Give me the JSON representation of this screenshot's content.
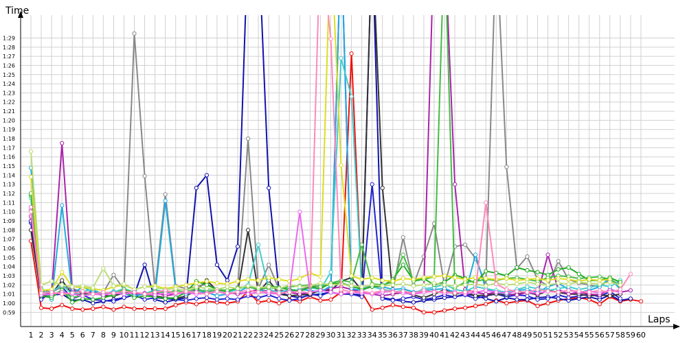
{
  "chart_data": {
    "type": "line",
    "title": "",
    "xlabel": "Laps",
    "ylabel": "Time",
    "grid": true,
    "legend": "none",
    "x": [
      1,
      2,
      3,
      4,
      5,
      6,
      7,
      8,
      9,
      10,
      11,
      12,
      13,
      14,
      15,
      16,
      17,
      18,
      19,
      20,
      21,
      22,
      23,
      24,
      25,
      26,
      27,
      28,
      29,
      30,
      31,
      32,
      33,
      34,
      35,
      36,
      37,
      38,
      39,
      40,
      41,
      42,
      43,
      44,
      45,
      46,
      47,
      48,
      49,
      50,
      51,
      52,
      53,
      54,
      55,
      56,
      57,
      58,
      59,
      60
    ],
    "x_tick_labels": [
      "1",
      "2",
      "3",
      "4",
      "5",
      "6",
      "7",
      "8",
      "9",
      "10",
      "11",
      "12",
      "13",
      "14",
      "15",
      "16",
      "17",
      "18",
      "19",
      "20",
      "21",
      "22",
      "23",
      "24",
      "25",
      "26",
      "27",
      "28",
      "29",
      "30",
      "31",
      "32",
      "33",
      "34",
      "35",
      "36",
      "37",
      "38",
      "39",
      "40",
      "41",
      "42",
      "43",
      "44",
      "45",
      "46",
      "47",
      "48",
      "49",
      "50",
      "51",
      "52",
      "53",
      "54",
      "55",
      "56",
      "57",
      "58",
      "59",
      "60"
    ],
    "y_unit": "seconds",
    "ylim": [
      58,
      91
    ],
    "y_ticks": [
      59,
      60,
      61,
      62,
      63,
      64,
      65,
      66,
      67,
      68,
      69,
      70,
      71,
      72,
      73,
      74,
      75,
      76,
      77,
      78,
      79,
      80,
      81,
      82,
      83,
      84,
      85,
      86,
      87,
      88,
      89
    ],
    "y_tick_labels": [
      "0:59",
      "1:00",
      "1:01",
      "1:02",
      "1:03",
      "1:04",
      "1:05",
      "1:06",
      "1:07",
      "1:08",
      "1:09",
      "1:10",
      "1:11",
      "1:12",
      "1:13",
      "1:14",
      "1:15",
      "1:16",
      "1:17",
      "1:18",
      "1:19",
      "1:20",
      "1:21",
      "1:22",
      "1:23",
      "1:24",
      "1:25",
      "1:26",
      "1:27",
      "1:28",
      "1:29"
    ],
    "series": [
      {
        "color": "#ee1111",
        "values": [
          66.8,
          59.5,
          59.4,
          59.8,
          59.4,
          59.3,
          59.4,
          59.6,
          59.3,
          59.6,
          59.4,
          59.4,
          59.4,
          59.4,
          59.8,
          60.1,
          59.9,
          60.2,
          60.1,
          60.0,
          60.2,
          61.3,
          60.1,
          60.3,
          60.0,
          60.4,
          60.2,
          60.7,
          60.3,
          60.4,
          61.2,
          87.3,
          61.2,
          59.3,
          59.5,
          59.8,
          59.6,
          59.5,
          59.0,
          59.0,
          59.2,
          59.4,
          59.5,
          59.7,
          59.9,
          60.3,
          60.0,
          60.2,
          60.3,
          59.7,
          60.0,
          60.3,
          60.5,
          60.6,
          60.4,
          59.9,
          60.7,
          60.2,
          60.4,
          60.2
        ]
      },
      {
        "color": "#1111aa",
        "values": [
          68.8,
          60.7,
          60.9,
          61.0,
          60.3,
          60.4,
          60.0,
          60.2,
          60.4,
          60.6,
          60.9,
          64.2,
          60.4,
          60.1,
          60.4,
          60.6,
          72.6,
          74.0,
          64.2,
          62.5,
          66.2,
          100.0,
          100.0,
          72.6,
          61.2,
          60.8,
          60.6,
          60.9,
          61.0,
          61.2,
          61.0,
          61.0,
          60.9,
          100.0,
          60.6,
          60.4,
          60.2,
          60.1,
          60.3,
          60.4,
          60.6,
          60.7,
          61.0,
          60.8,
          60.5,
          60.2,
          60.6,
          60.4,
          60.4,
          60.6,
          60.7,
          60.5,
          60.3,
          60.5,
          60.7,
          60.4,
          60.9,
          60.3,
          60.5,
          null
        ]
      },
      {
        "color": "#2222cc",
        "values": [
          69.0,
          60.4,
          61.2,
          61.8,
          60.5,
          60.9,
          60.4,
          60.3,
          60.2,
          60.6,
          60.9,
          60.4,
          60.6,
          60.5,
          60.4,
          60.3,
          60.5,
          60.6,
          60.4,
          60.5,
          60.4,
          60.8,
          60.6,
          60.9,
          60.5,
          60.3,
          60.5,
          61.0,
          60.8,
          61.3,
          100.0,
          61.0,
          60.7,
          73.0,
          60.5,
          60.3,
          60.5,
          60.7,
          60.4,
          60.6,
          60.9,
          60.7,
          60.9,
          60.5,
          60.8,
          61.0,
          60.7,
          60.9,
          60.8,
          60.4,
          60.5,
          60.9,
          60.6,
          60.8,
          61.0,
          60.7,
          61.3,
          60.5,
          null,
          null
        ]
      },
      {
        "color": "#333333",
        "values": [
          68.0,
          60.8,
          61.0,
          62.5,
          61.0,
          60.9,
          61.2,
          60.8,
          60.8,
          61.1,
          61.2,
          61.0,
          60.8,
          60.6,
          60.5,
          60.8,
          61.4,
          62.5,
          61.4,
          61.0,
          61.2,
          68.0,
          61.2,
          62.5,
          61.0,
          60.8,
          60.9,
          61.0,
          61.4,
          61.4,
          62.4,
          62.8,
          61.4,
          100.0,
          72.6,
          61.0,
          61.2,
          60.9,
          60.6,
          61.0,
          61.5,
          61.0,
          61.2,
          60.8,
          60.9,
          61.0,
          60.9,
          61.0,
          61.2,
          60.9,
          61.4,
          61.2,
          61.0,
          61.0,
          60.8,
          60.9,
          60.8,
          61.0,
          null,
          null
        ]
      },
      {
        "color": "#888888",
        "values": [
          70.2,
          61.5,
          61.2,
          61.8,
          61.6,
          61.2,
          61.0,
          61.2,
          63.1,
          61.5,
          89.5,
          73.9,
          61.5,
          71.9,
          61.9,
          61.6,
          61.8,
          62.1,
          61.5,
          61.2,
          61.5,
          78.0,
          61.6,
          64.2,
          61.5,
          61.2,
          61.5,
          61.8,
          61.9,
          62.0,
          62.2,
          61.8,
          61.6,
          61.9,
          61.5,
          61.3,
          67.2,
          62.0,
          65.1,
          68.7,
          61.9,
          66.2,
          66.4,
          64.9,
          62.0,
          100.0,
          74.9,
          63.8,
          65.1,
          62.6,
          61.9,
          64.6,
          62.6,
          62.2,
          62.0,
          61.8,
          62.6,
          62.0,
          null,
          null
        ]
      },
      {
        "color": "#aa22aa",
        "values": [
          69.5,
          61.2,
          61.0,
          77.5,
          61.5,
          61.0,
          61.3,
          61.0,
          61.2,
          61.4,
          61.0,
          61.1,
          61.2,
          60.8,
          61.0,
          61.2,
          61.5,
          61.0,
          61.3,
          61.2,
          61.0,
          61.2,
          61.5,
          61.3,
          61.4,
          61.2,
          61.0,
          61.2,
          61.4,
          61.6,
          61.8,
          61.5,
          61.2,
          61.0,
          60.8,
          61.0,
          61.2,
          61.0,
          61.4,
          100.0,
          100.0,
          73.0,
          61.5,
          61.2,
          61.0,
          61.2,
          61.0,
          60.9,
          61.2,
          61.0,
          65.3,
          61.5,
          61.0,
          61.2,
          61.0,
          60.9,
          61.5,
          61.2,
          61.4,
          null
        ]
      },
      {
        "color": "#22aadd",
        "values": [
          74.8,
          61.6,
          60.4,
          70.7,
          61.0,
          61.8,
          61.2,
          61.0,
          61.3,
          61.0,
          60.8,
          61.0,
          60.9,
          71.2,
          61.5,
          61.0,
          61.3,
          61.2,
          60.8,
          61.0,
          61.2,
          61.8,
          61.5,
          61.2,
          61.0,
          61.3,
          61.5,
          61.4,
          61.2,
          61.9,
          100.0,
          61.6,
          61.4,
          61.9,
          61.8,
          61.5,
          61.6,
          61.2,
          61.4,
          61.5,
          61.6,
          61.2,
          61.0,
          65.3,
          61.5,
          61.2,
          61.0,
          61.4,
          61.5,
          61.2,
          61.8,
          62.2,
          61.5,
          61.2,
          61.4,
          61.8,
          62.8,
          61.5,
          null,
          null
        ]
      },
      {
        "color": "#44cccc",
        "values": [
          71.5,
          61.2,
          61.2,
          62.0,
          61.0,
          61.3,
          61.5,
          61.0,
          61.2,
          61.6,
          61.2,
          61.0,
          61.5,
          61.2,
          61.0,
          61.4,
          61.2,
          61.5,
          61.3,
          61.2,
          61.5,
          62.0,
          66.4,
          61.5,
          61.2,
          61.5,
          61.4,
          61.7,
          61.5,
          63.4,
          86.8,
          82.6,
          61.6,
          61.8,
          61.5,
          61.2,
          61.4,
          61.0,
          61.6,
          61.7,
          62.1,
          61.5,
          61.3,
          61.8,
          61.6,
          61.4,
          61.2,
          61.5,
          61.8,
          61.6,
          61.4,
          61.6,
          61.8,
          61.5,
          61.7,
          62.0,
          61.8,
          62.5,
          null,
          null
        ]
      },
      {
        "color": "#22aa22",
        "values": [
          71.8,
          60.8,
          60.6,
          61.5,
          60.1,
          60.5,
          60.4,
          60.6,
          60.9,
          61.4,
          60.6,
          60.8,
          60.7,
          60.5,
          60.6,
          61.2,
          62.4,
          62.0,
          61.5,
          61.3,
          61.7,
          61.8,
          61.5,
          61.9,
          61.7,
          61.5,
          61.3,
          61.8,
          61.6,
          62.2,
          62.2,
          61.9,
          61.5,
          61.8,
          61.9,
          62.6,
          64.2,
          62.5,
          62.7,
          62.0,
          62.3,
          63.1,
          62.7,
          62.2,
          63.5,
          63.3,
          63.0,
          63.9,
          63.6,
          63.4,
          63.1,
          63.7,
          63.9,
          63.2,
          62.5,
          62.5,
          62.8,
          62.3,
          null,
          null
        ]
      },
      {
        "color": "#44bb44",
        "values": [
          72.0,
          61.0,
          60.8,
          61.4,
          60.6,
          60.9,
          61.0,
          61.2,
          61.0,
          61.5,
          61.2,
          61.0,
          61.3,
          61.1,
          61.4,
          61.2,
          61.6,
          61.2,
          61.5,
          61.4,
          61.6,
          61.8,
          61.5,
          61.7,
          61.6,
          61.8,
          61.9,
          62.0,
          61.8,
          62.2,
          62.5,
          62.3,
          66.4,
          62.1,
          62.0,
          62.3,
          65.3,
          62.4,
          62.6,
          62.9,
          100.0,
          61.7,
          62.3,
          62.4,
          62.6,
          62.5,
          62.7,
          62.8,
          62.6,
          62.4,
          62.8,
          63.0,
          62.9,
          62.7,
          62.8,
          62.9,
          62.6,
          61.9,
          null,
          null
        ]
      },
      {
        "color": "#dddd22",
        "values": [
          73.8,
          61.4,
          61.5,
          63.4,
          61.8,
          61.7,
          61.6,
          61.4,
          61.8,
          62.0,
          61.5,
          61.8,
          61.9,
          61.6,
          61.8,
          62.0,
          62.2,
          62.4,
          62.2,
          62.1,
          62.4,
          62.6,
          62.5,
          62.8,
          62.6,
          62.4,
          62.7,
          63.3,
          62.9,
          100.0,
          75.1,
          63.0,
          62.6,
          62.8,
          62.5,
          62.4,
          62.7,
          62.6,
          62.8,
          62.9,
          63.0,
          62.8,
          62.6,
          62.8,
          62.7,
          62.6,
          62.7,
          62.5,
          62.6,
          62.7,
          62.5,
          62.7,
          62.6,
          62.4,
          62.6,
          62.5,
          62.6,
          null,
          null,
          null
        ]
      },
      {
        "color": "#bbdd77",
        "values": [
          76.6,
          62.0,
          62.4,
          62.0,
          61.8,
          61.9,
          61.7,
          63.8,
          61.9,
          62.1,
          61.5,
          61.8,
          61.7,
          61.5,
          61.6,
          61.4,
          61.8,
          61.6,
          61.5,
          61.8,
          61.6,
          61.9,
          61.7,
          61.8,
          61.6,
          62.0,
          61.8,
          61.9,
          62.2,
          62.0,
          62.1,
          61.9,
          61.8,
          62.0,
          61.9,
          62.0,
          62.1,
          61.9,
          62.0,
          62.2,
          62.0,
          61.9,
          62.0,
          62.1,
          61.9,
          62.2,
          62.0,
          62.1,
          62.3,
          62.1,
          62.0,
          62.2,
          62.1,
          62.3,
          62.2,
          62.1,
          62.3,
          62.0,
          null,
          null
        ]
      },
      {
        "color": "#ee66ee",
        "values": [
          70.5,
          60.9,
          61.0,
          61.2,
          61.0,
          60.8,
          61.0,
          60.9,
          61.1,
          61.0,
          61.2,
          61.0,
          60.9,
          61.1,
          61.0,
          61.2,
          61.0,
          61.1,
          61.3,
          61.0,
          61.2,
          61.0,
          61.2,
          61.1,
          61.0,
          61.3,
          70.0,
          61.2,
          61.4,
          61.2,
          61.0,
          61.2,
          61.1,
          61.0,
          61.2,
          61.3,
          61.1,
          61.0,
          61.2,
          61.3,
          61.1,
          61.2,
          61.0,
          61.2,
          61.4,
          61.2,
          61.1,
          61.3,
          61.2,
          61.1,
          61.3,
          61.2,
          61.4,
          61.2,
          61.3,
          61.1,
          61.4,
          61.2,
          null,
          null
        ]
      },
      {
        "color": "#ff88bb",
        "values": [
          70.0,
          61.1,
          61.2,
          61.0,
          61.1,
          61.3,
          61.0,
          61.2,
          61.1,
          61.3,
          61.2,
          61.0,
          61.2,
          61.4,
          61.1,
          61.3,
          61.2,
          61.0,
          61.3,
          61.1,
          61.2,
          61.4,
          61.2,
          61.3,
          61.1,
          61.2,
          61.3,
          61.1,
          100.0,
          88.9,
          61.5,
          61.2,
          61.3,
          61.1,
          61.4,
          61.2,
          61.3,
          61.1,
          61.4,
          61.2,
          61.3,
          61.1,
          61.2,
          61.4,
          71.0,
          62.1,
          61.5,
          61.3,
          61.2,
          61.5,
          61.3,
          61.2,
          61.4,
          61.3,
          61.2,
          61.4,
          61.2,
          61.5,
          63.2,
          null
        ]
      }
    ]
  }
}
